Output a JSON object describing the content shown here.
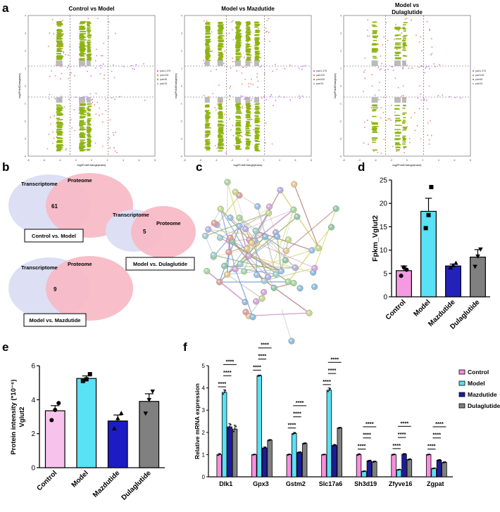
{
  "panel_letters": {
    "a": "a",
    "b": "b",
    "c": "c",
    "d": "d",
    "e": "e",
    "f": "f"
  },
  "panel_a": {
    "ylabel": "log2FoldChange(rs)",
    "xlabel": "log2FoldChange(trans)",
    "xticks": [
      "-8",
      "-6",
      "-4",
      "-2",
      "0",
      "2",
      "4",
      "6",
      "8"
    ],
    "yticks": [
      "4",
      "3",
      "2",
      "1",
      "0",
      "-1",
      "-2",
      "-3",
      "-4"
    ],
    "plots": [
      {
        "title": "Control vs Model",
        "legend": [
          "part1,379",
          "part128",
          "part46",
          "part15"
        ]
      },
      {
        "title": "Model vs Mazdutide",
        "legend": [
          "part1,379",
          "part120",
          "part440",
          "part15"
        ]
      },
      {
        "title": "Model vs Dulaglutide",
        "title_lines": [
          "Model vs",
          "Dulaglutide"
        ],
        "legend": [
          "part1,379",
          "part128",
          "part46",
          "part15"
        ]
      }
    ],
    "colors": {
      "green": "#8db510",
      "grey": "#bbbbbb",
      "red": "#f08080",
      "purple": "#c070f0"
    }
  },
  "panel_b": {
    "venns": [
      {
        "left": "Transcriptome",
        "right": "Proteome",
        "overlap": "61",
        "caption": "Control vs. Model"
      },
      {
        "left": "Transcriptome",
        "right": "Proteome",
        "overlap": "9",
        "caption": "Model vs. Mazdutide"
      },
      {
        "left": "Transcriptome",
        "right": "Proteome",
        "overlap": "5",
        "caption": "Model vs. Dulaglutide"
      }
    ],
    "colors": {
      "left": "#dde0f4",
      "right": "#f7b8c4"
    }
  },
  "panel_c": {
    "description_nodes": 72
  },
  "chart_data": [
    {
      "type": "bar",
      "panel": "d",
      "ylabel": "Fpkm_Vglut2",
      "categories": [
        "Control",
        "Model",
        "Mazdutide",
        "Dulaglutide"
      ],
      "values": [
        5.6,
        18.3,
        6.6,
        8.5
      ],
      "errors": [
        1.0,
        2.8,
        0.4,
        1.6
      ],
      "points": [
        [
          4.5,
          6.3,
          5.8
        ],
        [
          14.7,
          17.5,
          23.5
        ],
        [
          6.2,
          6.7,
          7.2
        ],
        [
          6.5,
          8.7,
          10.2
        ]
      ],
      "ylim": [
        0,
        25
      ],
      "yticks": [
        0,
        5,
        10,
        15,
        20,
        25
      ],
      "colors": [
        "#f59ae2",
        "#59e1f6",
        "#2222bb",
        "#808080"
      ],
      "markers": [
        "circle",
        "square",
        "triangle",
        "triangle-down"
      ]
    },
    {
      "type": "bar",
      "panel": "e",
      "ylabel": "Protein intensity (*10⁻⁶)",
      "ylabel2": "Vglut2",
      "categories": [
        "Control",
        "Model",
        "Mazdutide",
        "Dulaglutide"
      ],
      "values": [
        3.35,
        5.25,
        2.75,
        3.9
      ],
      "errors": [
        0.3,
        0.15,
        0.35,
        0.45
      ],
      "points": [
        [
          2.8,
          3.4,
          3.8
        ],
        [
          5.1,
          5.2,
          5.5
        ],
        [
          2.3,
          2.9,
          3.2
        ],
        [
          3.2,
          4.0,
          4.5
        ]
      ],
      "ylim": [
        0,
        6
      ],
      "yticks": [
        0,
        2,
        4,
        6
      ],
      "colors": [
        "#f7c2ec",
        "#59e1f6",
        "#1c1cc4",
        "#808080"
      ],
      "markers": [
        "circle",
        "square",
        "triangle",
        "triangle-down"
      ]
    },
    {
      "type": "bar",
      "panel": "f",
      "ylabel": "Relative mRNA expression",
      "categories": [
        "Dlk1",
        "Gpx3",
        "Gstm2",
        "Slc17a6",
        "Sh3d19",
        "Zfyve16",
        "Zgpat"
      ],
      "series": [
        {
          "name": "Control",
          "values": [
            1.0,
            1.0,
            1.0,
            1.0,
            1.0,
            1.0,
            1.0
          ],
          "color": "#f78fe0"
        },
        {
          "name": "Model",
          "values": [
            3.8,
            4.55,
            1.95,
            3.9,
            0.25,
            0.32,
            0.38
          ],
          "color": "#59e1f6"
        },
        {
          "name": "Mazdutide",
          "values": [
            2.25,
            1.3,
            1.1,
            1.42,
            0.72,
            1.02,
            0.75
          ],
          "color": "#1c1c9c"
        },
        {
          "name": "Dulaglutide",
          "values": [
            2.15,
            1.65,
            1.5,
            2.2,
            0.68,
            0.78,
            0.65
          ],
          "color": "#808080"
        }
      ],
      "errors": [
        [
          0.05,
          0.02,
          0.03,
          0.02,
          0.04,
          0.03,
          0.02
        ],
        [
          0.12,
          0.03,
          0.05,
          0.1,
          0.02,
          0.02,
          0.02
        ],
        [
          0.15,
          0.05,
          0.03,
          0.04,
          0.03,
          0.03,
          0.03
        ],
        [
          0.18,
          0.03,
          0.03,
          0.03,
          0.03,
          0.03,
          0.03
        ]
      ],
      "ylim": [
        0,
        5
      ],
      "yticks": [
        0,
        1,
        2,
        3,
        4,
        5
      ],
      "significance": "****"
    }
  ]
}
